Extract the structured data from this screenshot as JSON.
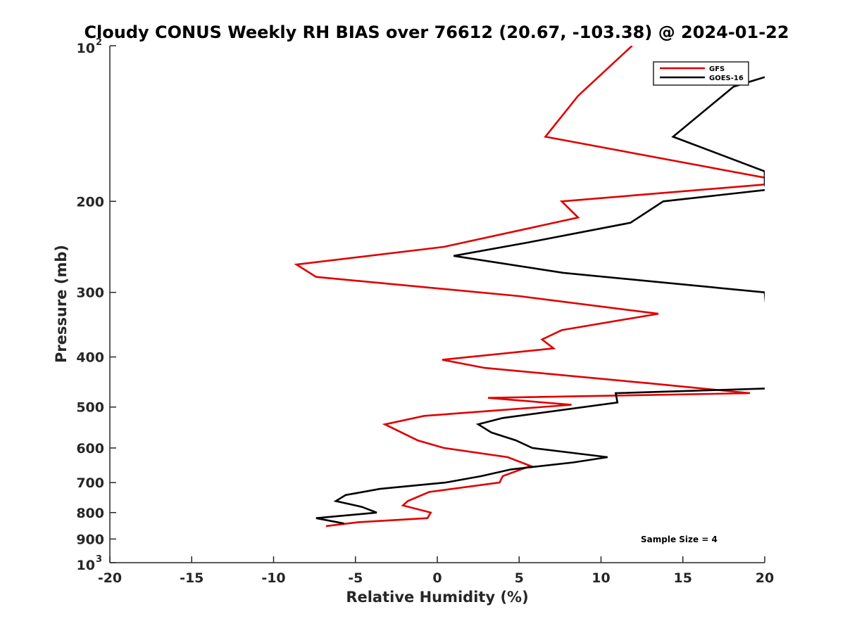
{
  "chart_data": {
    "type": "line",
    "title": "Cloudy CONUS Weekly RH BIAS over 76612 (20.67, -103.38) @ 2024-01-22",
    "xlabel": "Relative Humidity (%)",
    "ylabel": "Pressure (mb)",
    "xlim": [
      -20,
      20
    ],
    "ylim": [
      1000,
      100
    ],
    "y_scale": "log",
    "y_reversed": true,
    "x_ticks": [
      "-20",
      "-15",
      "-10",
      "-5",
      "0",
      "5",
      "10",
      "15",
      "20"
    ],
    "y_ticks": [
      {
        "value": 100,
        "base": "10",
        "exp": "2"
      },
      {
        "value": 200,
        "label": "200"
      },
      {
        "value": 300,
        "label": "300"
      },
      {
        "value": 400,
        "label": "400"
      },
      {
        "value": 500,
        "label": "500"
      },
      {
        "value": 600,
        "label": "600"
      },
      {
        "value": 700,
        "label": "700"
      },
      {
        "value": 800,
        "label": "800"
      },
      {
        "value": 900,
        "label": "900"
      },
      {
        "value": 1000,
        "base": "10",
        "exp": "3"
      }
    ],
    "legend_position": "top-right",
    "grid": false,
    "annotation": "Sample Size = 4",
    "series": [
      {
        "name": "GFS",
        "color": "#e00000",
        "points": [
          [
            11.9,
            100
          ],
          [
            8.6,
            125
          ],
          [
            6.6,
            150
          ],
          [
            20.0,
            180
          ],
          [
            20.5,
            185
          ],
          [
            7.6,
            200
          ],
          [
            8.6,
            215
          ],
          [
            0.4,
            245
          ],
          [
            -8.6,
            265
          ],
          [
            -7.4,
            280
          ],
          [
            5.0,
            305
          ],
          [
            13.5,
            330
          ],
          [
            7.6,
            355
          ],
          [
            6.4,
            370
          ],
          [
            7.1,
            385
          ],
          [
            0.3,
            405
          ],
          [
            2.9,
            420
          ],
          [
            13.0,
            450
          ],
          [
            19.1,
            470
          ],
          [
            3.1,
            480
          ],
          [
            8.2,
            495
          ],
          [
            -0.8,
            520
          ],
          [
            -3.2,
            540
          ],
          [
            -1.2,
            580
          ],
          [
            0.4,
            600
          ],
          [
            4.3,
            625
          ],
          [
            5.7,
            650
          ],
          [
            4.0,
            680
          ],
          [
            3.8,
            700
          ],
          [
            -0.5,
            730
          ],
          [
            -1.8,
            760
          ],
          [
            -2.1,
            775
          ],
          [
            -0.4,
            800
          ],
          [
            -0.6,
            820
          ],
          [
            -4.8,
            835
          ],
          [
            -6.8,
            850
          ]
        ]
      },
      {
        "name": "GOES-16",
        "color": "#000000",
        "points": [
          [
            20.0,
            115
          ],
          [
            18.1,
            120
          ],
          [
            14.4,
            150
          ],
          [
            20.0,
            175
          ],
          [
            20.0,
            185
          ],
          [
            20.1,
            190
          ],
          [
            13.8,
            200
          ],
          [
            11.8,
            220
          ],
          [
            5.6,
            240
          ],
          [
            1.0,
            255
          ],
          [
            7.7,
            275
          ],
          [
            20.0,
            300
          ],
          [
            20.5,
            460
          ],
          [
            10.9,
            470
          ],
          [
            11.0,
            490
          ],
          [
            4.0,
            525
          ],
          [
            2.5,
            540
          ],
          [
            3.3,
            560
          ],
          [
            4.8,
            580
          ],
          [
            5.8,
            600
          ],
          [
            10.4,
            625
          ],
          [
            8.3,
            640
          ],
          [
            4.5,
            660
          ],
          [
            2.7,
            680
          ],
          [
            0.5,
            700
          ],
          [
            -3.5,
            720
          ],
          [
            -5.6,
            740
          ],
          [
            -6.2,
            760
          ],
          [
            -4.6,
            780
          ],
          [
            -3.7,
            800
          ],
          [
            -7.4,
            820
          ],
          [
            -5.7,
            840
          ]
        ]
      }
    ]
  }
}
